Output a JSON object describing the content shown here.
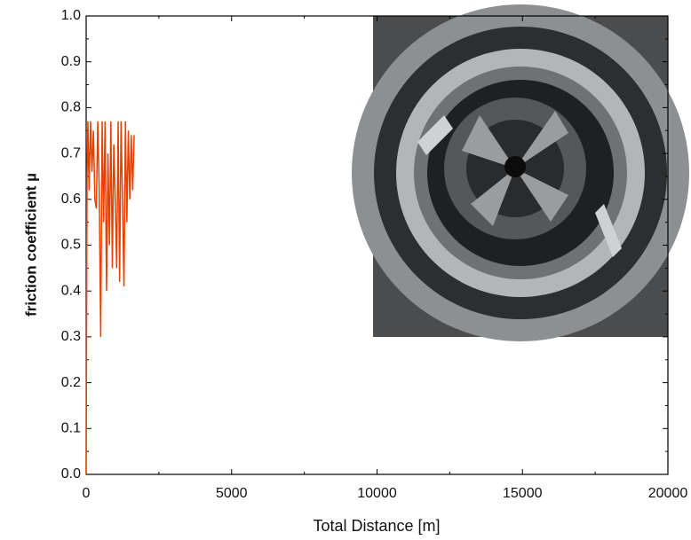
{
  "chart_data": {
    "type": "line",
    "xlabel": "Total Distance [m]",
    "ylabel": "friction coefficient µ",
    "x": [
      0,
      30,
      60,
      100,
      150,
      200,
      250,
      300,
      350,
      400,
      450,
      500,
      550,
      600,
      650,
      700,
      750,
      800,
      850,
      900,
      950,
      1000,
      1050,
      1100,
      1150,
      1200,
      1250,
      1300,
      1350,
      1400,
      1450,
      1500,
      1550,
      1600,
      1650
    ],
    "series": [
      {
        "color": "#e84000",
        "values": [
          0,
          0.65,
          0.77,
          0.62,
          0.77,
          0.66,
          0.75,
          0.6,
          0.58,
          0.77,
          0.62,
          0.3,
          0.77,
          0.55,
          0.77,
          0.4,
          0.7,
          0.5,
          0.77,
          0.45,
          0.72,
          0.6,
          0.45,
          0.77,
          0.42,
          0.77,
          0.6,
          0.41,
          0.77,
          0.55,
          0.75,
          0.6,
          0.74,
          0.62,
          0.74
        ]
      }
    ],
    "xlim": [
      0,
      20000
    ],
    "xticks": [
      0,
      5000,
      10000,
      15000,
      20000
    ],
    "x_minor_ticks": [
      2500,
      7500,
      12500,
      17500
    ],
    "ylim": [
      0,
      1
    ],
    "yticks": [
      {
        "value": 0,
        "label": "0.0"
      },
      0.1,
      0.2,
      0.3,
      0.4,
      0.5,
      0.6,
      0.7,
      0.8,
      0.9,
      {
        "value": 1,
        "label": "1.0"
      }
    ],
    "y_minor_ticks": [
      0.05,
      0.15,
      0.25,
      0.35,
      0.45,
      0.55,
      0.65,
      0.75,
      0.85,
      0.95
    ],
    "grid": false
  }
}
